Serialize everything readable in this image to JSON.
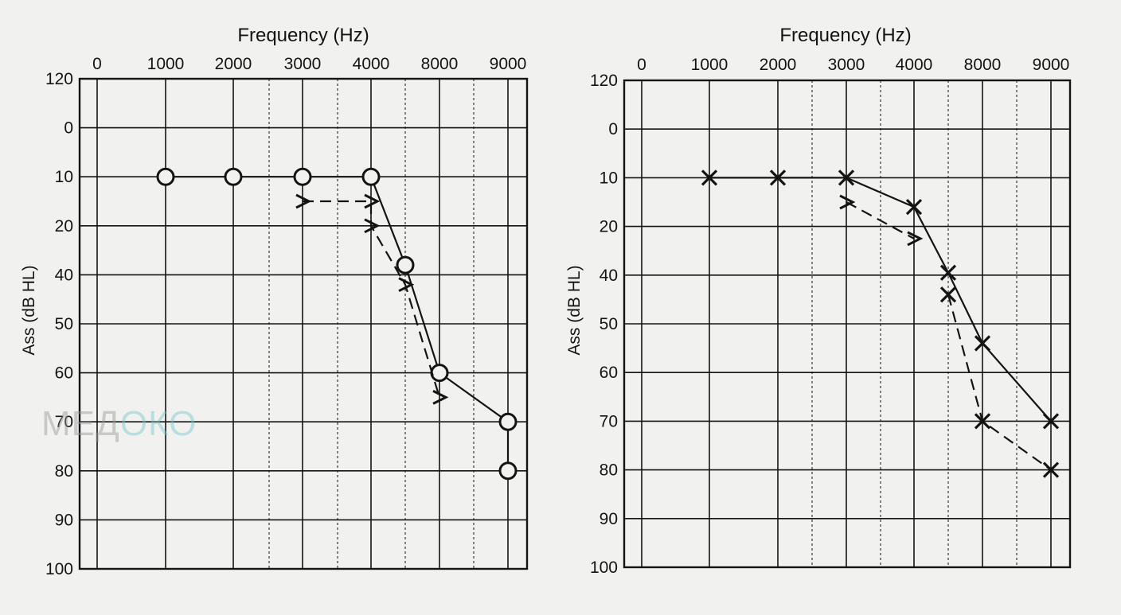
{
  "watermark": {
    "text_a": "МЕД",
    "text_b": "ОКО"
  },
  "colors": {
    "background": "#f1f1f0",
    "ink": "#141414",
    "watermark_gray": "#969696",
    "watermark_teal": "#78c8cd"
  },
  "chart_data": [
    {
      "type": "line",
      "title": "",
      "xlabel": "Frequency (Hz)",
      "ylabel": "Ass (dB HL)",
      "x_tick_labels": [
        "0",
        "1000",
        "2000",
        "3000",
        "4000",
        "8000",
        "9000"
      ],
      "y_tick_labels": [
        "120",
        "0",
        "10",
        "20",
        "40",
        "50",
        "60",
        "70",
        "80",
        "90",
        "100"
      ],
      "grid": true,
      "series": [
        {
          "marker": "circle",
          "line": "solid",
          "x": [
            "1000",
            "2000",
            "3000",
            "4000",
            "6000",
            "8000",
            "9000",
            "9000"
          ],
          "y": [
            10,
            10,
            10,
            10,
            36,
            60,
            70,
            80
          ]
        },
        {
          "marker": ">",
          "line": "dashed",
          "x": [
            "3000",
            "4000",
            "4000",
            "6000",
            "8000"
          ],
          "y": [
            15,
            15,
            20,
            42,
            65
          ]
        }
      ]
    },
    {
      "type": "line",
      "title": "",
      "xlabel": "Frequency (Hz)",
      "ylabel": "Ass (dB HL)",
      "x_tick_labels": [
        "0",
        "1000",
        "2000",
        "3000",
        "4000",
        "8000",
        "9000"
      ],
      "y_tick_labels": [
        "120",
        "0",
        "10",
        "20",
        "40",
        "50",
        "60",
        "70",
        "80",
        "90",
        "100"
      ],
      "grid": true,
      "series": [
        {
          "marker": "x",
          "line": "solid",
          "x": [
            "1000",
            "2000",
            "3000",
            "4000",
            "6000",
            "8000",
            "9000"
          ],
          "y": [
            10,
            10,
            10,
            16,
            39,
            54,
            70
          ]
        },
        {
          "marker": "x",
          "line": "dashed",
          "x": [
            "6000",
            "8000",
            "9000"
          ],
          "y": [
            44,
            70,
            80
          ]
        },
        {
          "marker": ">",
          "line": "dashed",
          "x": [
            "3000",
            "4000"
          ],
          "y": [
            15,
            25
          ]
        }
      ]
    }
  ]
}
